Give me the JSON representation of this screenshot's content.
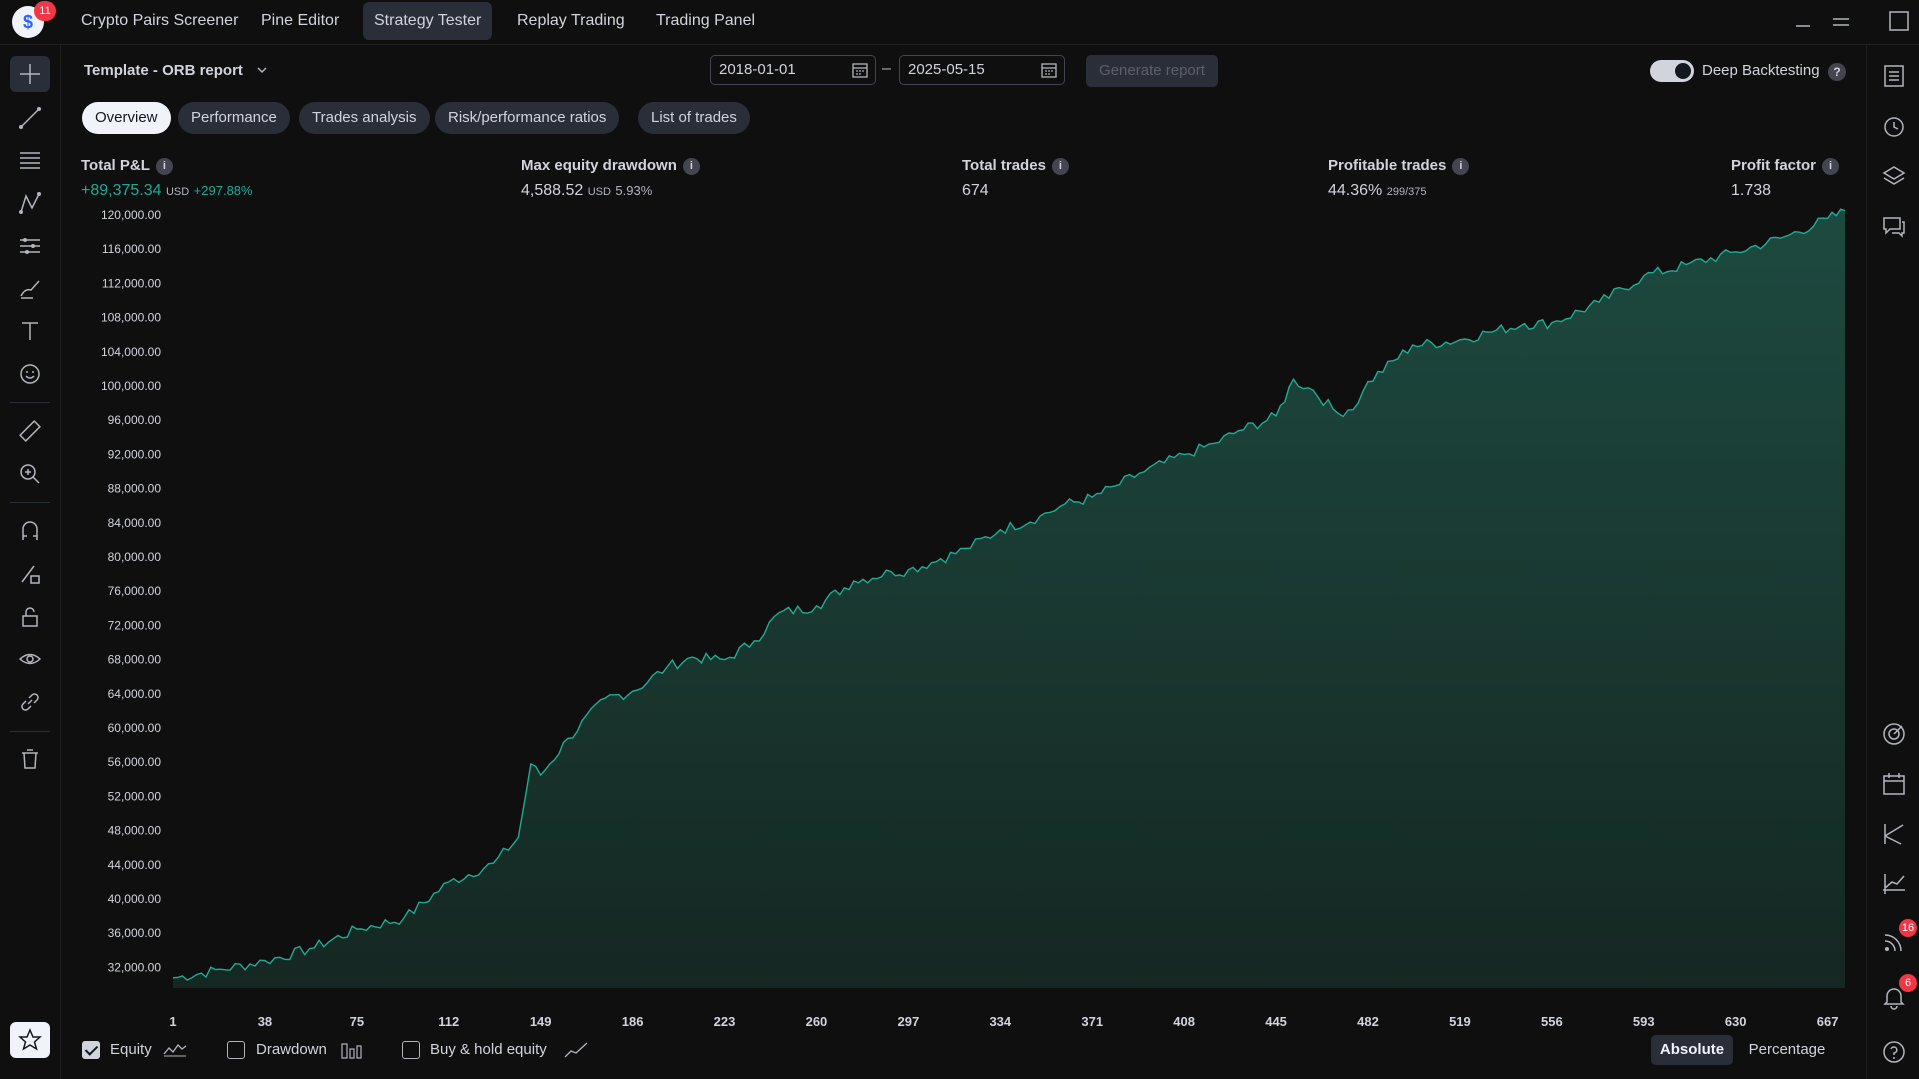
{
  "topbar": {
    "logo_badge": "11",
    "tabs": [
      {
        "label": "Crypto Pairs Screener"
      },
      {
        "label": "Pine Editor"
      },
      {
        "label": "Strategy Tester",
        "active": true
      },
      {
        "label": "Replay Trading"
      },
      {
        "label": "Trading Panel"
      }
    ]
  },
  "left_toolbar": {
    "tools": [
      "crosshair-icon",
      "trend-line-icon",
      "fib-lines-icon",
      "pattern-icon",
      "forecast-icon",
      "brush-icon",
      "text-icon",
      "emoji-icon",
      "ruler-icon",
      "zoom-in-icon",
      "magnet-icon",
      "lock-pencil-icon",
      "lock-icon",
      "eye-icon",
      "link-icon",
      "trash-icon",
      "star-icon"
    ]
  },
  "right_toolbar": {
    "tools": [
      "watchlist-icon",
      "alerts-clock-icon",
      "layers-icon",
      "chat-icon",
      "target-icon",
      "calendar-icon",
      "pick-icon",
      "chart-line-icon",
      "rss-icon",
      "bell-icon",
      "help-icon"
    ],
    "rss_badge": "16",
    "bell_badge": "6"
  },
  "header": {
    "template_title": "Template - ORB report",
    "date_from": "2018-01-01",
    "date_separator": "–",
    "date_to": "2025-05-15",
    "generate_label": "Generate report",
    "deep_backtesting_label": "Deep Backtesting",
    "deep_backtesting_on": true,
    "help_glyph": "?"
  },
  "subtabs": [
    {
      "label": "Overview",
      "active": true
    },
    {
      "label": "Performance"
    },
    {
      "label": "Trades analysis"
    },
    {
      "label": "Risk/performance ratios"
    },
    {
      "label": "List of trades"
    }
  ],
  "metrics": {
    "total_pnl": {
      "label": "Total P&L",
      "value": "+89,375.34",
      "currency": "USD",
      "pct": "+297.88%"
    },
    "max_drawdown": {
      "label": "Max equity drawdown",
      "value": "4,588.52",
      "currency": "USD",
      "pct": "5.93%"
    },
    "total_trades": {
      "label": "Total trades",
      "value": "674"
    },
    "profitable_trades": {
      "label": "Profitable trades",
      "value": "44.36%",
      "ratio": "299/375"
    },
    "profit_factor": {
      "label": "Profit factor",
      "value": "1.738"
    }
  },
  "chart_data": {
    "type": "area",
    "y_ticks": [
      "120,000.00",
      "116,000.00",
      "112,000.00",
      "108,000.00",
      "104,000.00",
      "100,000.00",
      "96,000.00",
      "92,000.00",
      "88,000.00",
      "84,000.00",
      "80,000.00",
      "76,000.00",
      "72,000.00",
      "68,000.00",
      "64,000.00",
      "60,000.00",
      "56,000.00",
      "52,000.00",
      "48,000.00",
      "44,000.00",
      "40,000.00",
      "36,000.00",
      "32,000.00"
    ],
    "x_ticks": [
      "1",
      "38",
      "75",
      "112",
      "149",
      "186",
      "223",
      "260",
      "297",
      "334",
      "371",
      "408",
      "445",
      "482",
      "519",
      "556",
      "593",
      "630",
      "667"
    ],
    "ylim": [
      30000,
      120000
    ],
    "xlim": [
      1,
      674
    ],
    "x": [
      1,
      20,
      38,
      56,
      75,
      94,
      112,
      130,
      140,
      145,
      149,
      160,
      175,
      186,
      200,
      210,
      223,
      235,
      245,
      260,
      275,
      290,
      297,
      310,
      320,
      334,
      350,
      360,
      371,
      380,
      390,
      408,
      420,
      430,
      445,
      452,
      460,
      470,
      478,
      482,
      500,
      519,
      530,
      545,
      556,
      575,
      593,
      610,
      630,
      650,
      667,
      674
    ],
    "y": [
      30800,
      31800,
      32800,
      34200,
      36500,
      37800,
      42000,
      44200,
      47200,
      55800,
      54500,
      58800,
      63500,
      64300,
      67200,
      68300,
      68000,
      70200,
      73500,
      74300,
      77200,
      78300,
      78500,
      79800,
      81000,
      83200,
      84800,
      86200,
      87000,
      88300,
      89800,
      92000,
      93300,
      94800,
      96500,
      100800,
      99500,
      96800,
      98000,
      100500,
      104800,
      105400,
      106300,
      107300,
      107400,
      109800,
      112900,
      114200,
      115700,
      117500,
      119600,
      120500
    ],
    "series": [
      {
        "name": "Equity"
      }
    ]
  },
  "bottom": {
    "legend": [
      {
        "label": "Equity",
        "checked": true
      },
      {
        "label": "Drawdown",
        "checked": false
      },
      {
        "label": "Buy & hold equity",
        "checked": false
      }
    ],
    "absolute_label": "Absolute",
    "percentage_label": "Percentage"
  },
  "colors": {
    "accent_green": "#22ab94",
    "area_fill": "#1a3a33",
    "line": "#22ab94",
    "background": "#0f0f0f"
  }
}
